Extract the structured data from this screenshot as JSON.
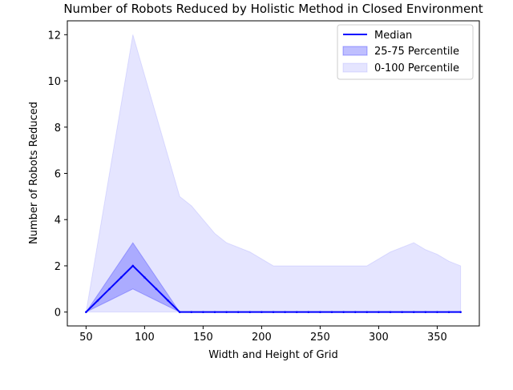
{
  "chart_data": {
    "type": "area",
    "title": "Number of Robots Reduced by Holistic Method in Closed Environment",
    "xlabel": "Width and Height of Grid",
    "ylabel": "Number of Robots Reduced",
    "xlim": [
      34,
      386
    ],
    "ylim": [
      -0.6,
      12.6
    ],
    "xticks": [
      50,
      100,
      150,
      200,
      250,
      300,
      350
    ],
    "yticks": [
      0,
      2,
      4,
      6,
      8,
      10,
      12
    ],
    "grid": false,
    "legend_position": "top-right",
    "x": [
      50,
      60,
      70,
      80,
      90,
      100,
      110,
      120,
      130,
      140,
      150,
      160,
      170,
      180,
      190,
      200,
      210,
      220,
      230,
      240,
      250,
      260,
      270,
      280,
      290,
      300,
      310,
      320,
      330,
      340,
      350,
      360,
      370
    ],
    "series": [
      {
        "name": "Median",
        "kind": "line",
        "color": "#0000ff",
        "values": [
          0,
          0.5,
          1,
          1.5,
          2,
          1.5,
          1,
          0.5,
          0,
          0,
          0,
          0,
          0,
          0,
          0,
          0,
          0,
          0,
          0,
          0,
          0,
          0,
          0,
          0,
          0,
          0,
          0,
          0,
          0,
          0,
          0,
          0,
          0
        ]
      },
      {
        "name": "25-75 Percentile",
        "kind": "band",
        "color": "#0000ff",
        "alpha": 0.25,
        "lower": [
          0,
          0.25,
          0.5,
          0.75,
          1,
          0.75,
          0.5,
          0.25,
          0,
          0,
          0,
          0,
          0,
          0,
          0,
          0,
          0,
          0,
          0,
          0,
          0,
          0,
          0,
          0,
          0,
          0,
          0,
          0,
          0,
          0,
          0,
          0,
          0
        ],
        "upper": [
          0,
          0.75,
          1.5,
          2.25,
          3,
          2.25,
          1.5,
          0.75,
          0,
          0,
          0,
          0,
          0,
          0,
          0,
          0,
          0,
          0,
          0,
          0,
          0,
          0,
          0,
          0,
          0,
          0,
          0,
          0,
          0,
          0,
          0,
          0,
          0
        ]
      },
      {
        "name": "0-100 Percentile",
        "kind": "band",
        "color": "#0000ff",
        "alpha": 0.1,
        "lower": [
          0,
          0,
          0,
          0,
          0,
          0,
          0,
          0,
          0,
          0,
          0,
          0,
          0,
          0,
          0,
          0,
          0,
          0,
          0,
          0,
          0,
          0,
          0,
          0,
          0,
          0,
          0,
          0,
          0,
          0,
          0,
          0,
          0
        ],
        "upper": [
          0,
          3,
          6,
          9,
          12,
          10.25,
          8.5,
          6.75,
          5,
          4.6,
          4,
          3.4,
          3,
          2.8,
          2.6,
          2.3,
          2,
          2,
          2,
          2,
          2,
          2,
          2,
          2,
          2,
          2.3,
          2.6,
          2.8,
          3,
          2.7,
          2.5,
          2.2,
          2
        ]
      }
    ]
  }
}
